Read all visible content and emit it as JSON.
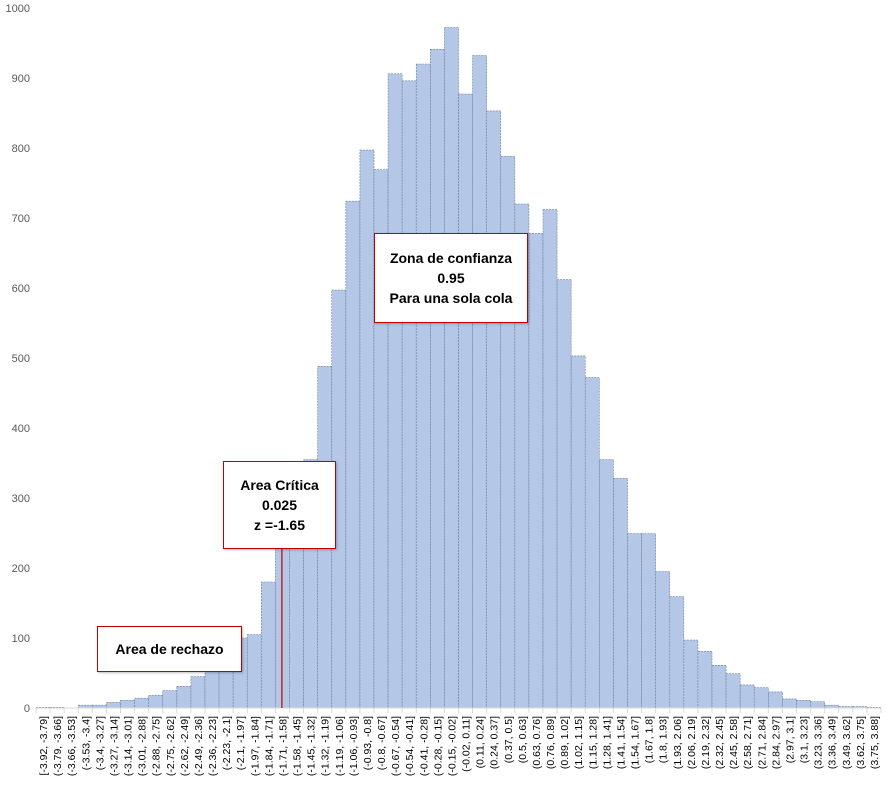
{
  "chart_data": {
    "type": "bar",
    "title": "",
    "xlabel": "",
    "ylabel": "",
    "ylim": [
      0,
      1000
    ],
    "y_ticks": [
      "0",
      "100",
      "200",
      "300",
      "400",
      "500",
      "600",
      "700",
      "800",
      "900",
      "1000"
    ],
    "grid": false,
    "legend": "none",
    "categories": [
      "[-3.92, -3.79]",
      "(-3.79, -3.66]",
      "(-3.66, -3.53]",
      "(-3.53, -3.4]",
      "(-3.4, -3.27]",
      "(-3.27, -3.14]",
      "(-3.14, -3.01]",
      "(-3.01, -2.88]",
      "(-2.88, -2.75]",
      "(-2.75, -2.62]",
      "(-2.62, -2.49]",
      "(-2.49, -2.36]",
      "(-2.36, -2.23]",
      "(-2.23, -2.1]",
      "(-2.1, -1.97]",
      "(-1.97, -1.84]",
      "(-1.84, -1.71]",
      "(-1.71, -1.58]",
      "(-1.58, -1.45]",
      "(-1.45, -1.32]",
      "(-1.32, -1.19]",
      "(-1.19, -1.06]",
      "(-1.06, -0.93]",
      "(-0.93, -0.8]",
      "(-0.8, -0.67]",
      "(-0.67, -0.54]",
      "(-0.54, -0.41]",
      "(-0.41, -0.28]",
      "(-0.28, -0.15]",
      "(-0.15, -0.02]",
      "(-0.02, 0.11]",
      "(0.11, 0.24]",
      "(0.24, 0.37]",
      "(0.37, 0.5]",
      "(0.5, 0.63]",
      "(0.63, 0.76]",
      "(0.76, 0.89]",
      "(0.89, 1.02]",
      "(1.02, 1.15]",
      "(1.15, 1.28]",
      "(1.28, 1.41]",
      "(1.41, 1.54]",
      "(1.54, 1.67]",
      "(1.67, 1.8]",
      "(1.8, 1.93]",
      "(1.93, 2.06]",
      "(2.06, 2.19]",
      "(2.19, 2.32]",
      "(2.32, 2.45]",
      "(2.45, 2.58]",
      "(2.58, 2.71]",
      "(2.71, 2.84]",
      "(2.84, 2.97]",
      "(2.97, 3.1]",
      "(3.1, 3.23]",
      "(3.23, 3.36]",
      "(3.36, 3.49]",
      "(3.49, 3.62]",
      "(3.62, 3.75]",
      "(3.75, 3.88]"
    ],
    "values": [
      1,
      1,
      0,
      4,
      4,
      8,
      11,
      14,
      18,
      25,
      31,
      45,
      58,
      75,
      100,
      105,
      180,
      245,
      315,
      355,
      488,
      597,
      724,
      797,
      769,
      906,
      896,
      920,
      941,
      972,
      877,
      932,
      853,
      788,
      720,
      678,
      712,
      612,
      503,
      472,
      355,
      328,
      249,
      249,
      195,
      159,
      97,
      81,
      61,
      49,
      33,
      29,
      23,
      13,
      11,
      9,
      4,
      2,
      2,
      1
    ],
    "critical_line_x": -1.65,
    "annotations": [
      {
        "lines": [
          "Zona de confianza",
          "0.95",
          "Para una sola cola"
        ]
      },
      {
        "lines": [
          "Area Crítica",
          "0.025",
          "z =-1.65"
        ]
      },
      {
        "lines": [
          "Area de rechazo"
        ]
      }
    ],
    "colors": {
      "bar_fill": "#b4c7e7",
      "bar_border": "#6c7f9e",
      "axis": "#d9d9d9",
      "critical_line": "#c00000",
      "callout_border": "#c00000"
    }
  }
}
